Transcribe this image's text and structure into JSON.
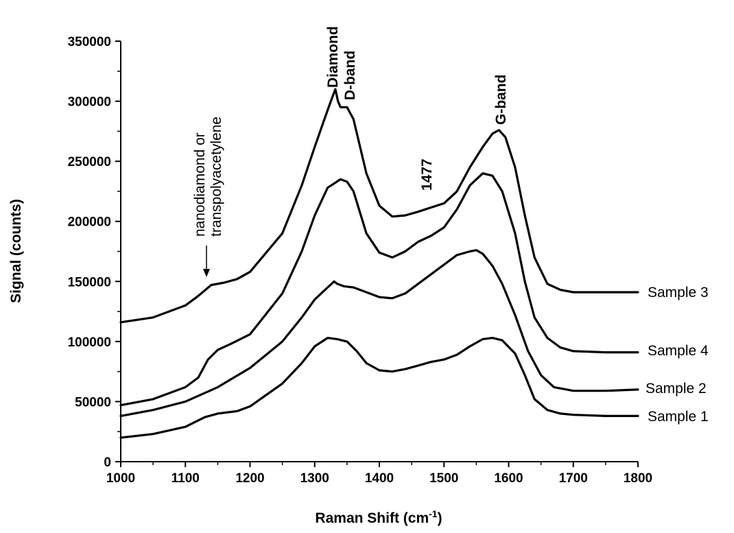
{
  "chart_data": {
    "type": "line",
    "title": "",
    "xlabel": "Raman Shift (cm",
    "xlabel_sup": "-1",
    "xlabel_close": ")",
    "ylabel": "Signal (counts)",
    "xlim": [
      1000,
      1800
    ],
    "ylim": [
      0,
      350000
    ],
    "xticks": [
      1000,
      1100,
      1200,
      1300,
      1400,
      1500,
      1600,
      1700,
      1800
    ],
    "yticks": [
      0,
      50000,
      100000,
      150000,
      200000,
      250000,
      300000,
      350000
    ],
    "grid": false,
    "series": [
      {
        "name": "Sample 3",
        "x": [
          1000,
          1050,
          1100,
          1120,
          1140,
          1160,
          1180,
          1200,
          1250,
          1280,
          1300,
          1315,
          1325,
          1332,
          1336,
          1340,
          1350,
          1360,
          1380,
          1400,
          1420,
          1440,
          1460,
          1477,
          1500,
          1520,
          1540,
          1560,
          1575,
          1585,
          1595,
          1610,
          1625,
          1640,
          1660,
          1680,
          1700,
          1750,
          1800
        ],
        "y": [
          116000,
          120000,
          130000,
          138000,
          147000,
          149000,
          152000,
          158000,
          190000,
          230000,
          262000,
          285000,
          300000,
          310000,
          300000,
          295000,
          295000,
          285000,
          240000,
          213000,
          204000,
          205000,
          208000,
          211000,
          215000,
          225000,
          245000,
          262000,
          273000,
          276000,
          270000,
          245000,
          205000,
          170000,
          148000,
          143000,
          141000,
          141000,
          141000
        ]
      },
      {
        "name": "Sample 4",
        "x": [
          1000,
          1050,
          1100,
          1120,
          1135,
          1150,
          1170,
          1200,
          1250,
          1280,
          1300,
          1320,
          1340,
          1350,
          1360,
          1380,
          1400,
          1420,
          1440,
          1460,
          1480,
          1500,
          1520,
          1540,
          1560,
          1575,
          1590,
          1610,
          1625,
          1640,
          1660,
          1680,
          1700,
          1750,
          1800
        ],
        "y": [
          47000,
          52000,
          62000,
          70000,
          85000,
          93000,
          98000,
          106000,
          140000,
          175000,
          205000,
          228000,
          235000,
          233000,
          225000,
          190000,
          174000,
          170000,
          175000,
          183000,
          188000,
          195000,
          210000,
          230000,
          240000,
          238000,
          225000,
          190000,
          150000,
          120000,
          103000,
          95000,
          92000,
          91000,
          91000
        ]
      },
      {
        "name": "Sample 2",
        "x": [
          1000,
          1050,
          1100,
          1150,
          1200,
          1250,
          1280,
          1300,
          1320,
          1330,
          1335,
          1345,
          1360,
          1380,
          1400,
          1420,
          1440,
          1460,
          1480,
          1500,
          1520,
          1540,
          1550,
          1560,
          1575,
          1590,
          1610,
          1630,
          1650,
          1670,
          1700,
          1750,
          1800
        ],
        "y": [
          38000,
          43000,
          50000,
          62000,
          78000,
          100000,
          120000,
          135000,
          145000,
          150000,
          148000,
          146000,
          145000,
          141000,
          137000,
          136000,
          140000,
          148000,
          156000,
          164000,
          172000,
          175000,
          176000,
          173000,
          163000,
          148000,
          122000,
          92000,
          72000,
          62000,
          59000,
          59000,
          60000
        ]
      },
      {
        "name": "Sample 1",
        "x": [
          1000,
          1050,
          1100,
          1130,
          1150,
          1180,
          1200,
          1250,
          1280,
          1300,
          1320,
          1335,
          1350,
          1365,
          1380,
          1400,
          1420,
          1440,
          1460,
          1480,
          1500,
          1520,
          1540,
          1560,
          1575,
          1590,
          1610,
          1625,
          1640,
          1660,
          1680,
          1700,
          1750,
          1800
        ],
        "y": [
          20000,
          23000,
          29000,
          37000,
          40000,
          42000,
          46000,
          65000,
          82000,
          96000,
          103000,
          102000,
          100000,
          92000,
          82000,
          76000,
          75000,
          77000,
          80000,
          83000,
          85000,
          89000,
          96000,
          102000,
          103000,
          101000,
          90000,
          72000,
          52000,
          43000,
          40000,
          39000,
          38000,
          38000
        ]
      }
    ],
    "series_labels": [
      {
        "text": "Sample 3",
        "y": 141000
      },
      {
        "text": "Sample 4",
        "y": 92000
      },
      {
        "text": "Sample 2",
        "y": 60000
      },
      {
        "text": "Sample 1",
        "y": 37000
      }
    ],
    "annotations": {
      "nanodiamond_line1": "nanodiamond or",
      "nanodiamond_line2": "transpolyacetylene",
      "diamond": "Diamond",
      "d_band": "D-band",
      "peak_1477": "1477",
      "g_band": "G-band"
    }
  }
}
